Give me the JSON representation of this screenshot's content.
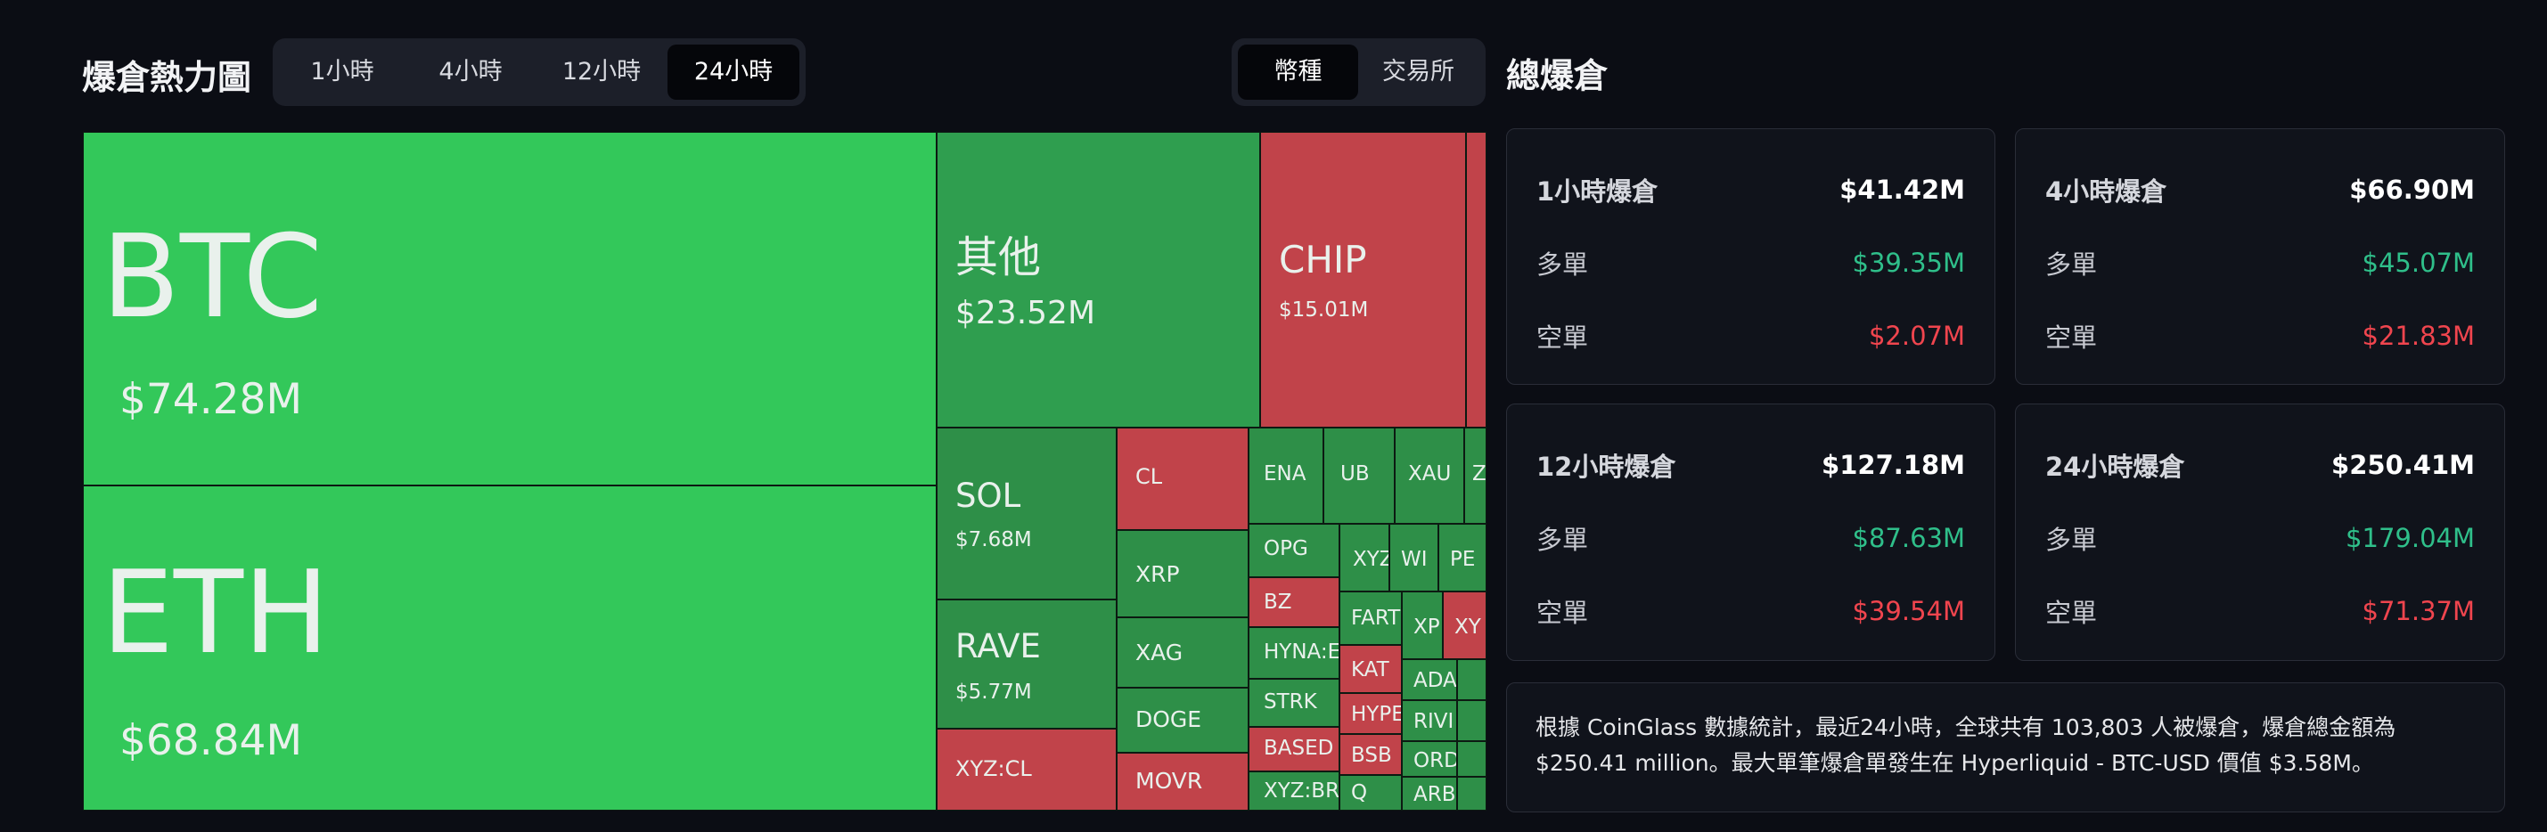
{
  "header": {
    "title": "爆倉熱力圖",
    "time_tabs": [
      "1小時",
      "4小時",
      "12小時",
      "24小時"
    ],
    "active_time_tab": "24小時",
    "group_tabs": [
      "幣種",
      "交易所"
    ],
    "active_group_tab": "幣種"
  },
  "treemap": {
    "colors": {
      "long_dominant": "#33c85a",
      "short_dominant": "#c1434a"
    },
    "tiles": {
      "btc": {
        "symbol": "BTC",
        "value": "$74.28M"
      },
      "eth": {
        "symbol": "ETH",
        "value": "$68.84M"
      },
      "other": {
        "symbol": "其他",
        "value": "$23.52M"
      },
      "chip": {
        "symbol": "CHIP",
        "value": "$15.01M"
      },
      "sol": {
        "symbol": "SOL",
        "value": "$7.68M"
      },
      "rave": {
        "symbol": "RAVE",
        "value": "$5.77M"
      },
      "cl": "CL",
      "xrp": "XRP",
      "xag": "XAG",
      "doge": "DOGE",
      "movr": "MOVR",
      "xyzcl": "XYZ:CL",
      "ena": "ENA",
      "ub": "UB",
      "xau": "XAU",
      "z": "Z",
      "opg": "OPG",
      "xyz": "XYZ",
      "wi": "WI",
      "pe": "PE",
      "bz": "BZ",
      "fart": "FART",
      "xp": "XP",
      "xy": "XY",
      "hyna": "HYNA:E",
      "kat": "KAT",
      "ada": "ADA",
      "strk": "STRK",
      "hype": "HYPE",
      "rivi": "RIVI",
      "based": "BASED",
      "bsb": "BSB",
      "ord": "ORD",
      "xyzbr": "XYZ:BR",
      "q": "Q",
      "arb": "ARB"
    }
  },
  "summary_panel": {
    "title": "總爆倉",
    "long_label": "多單",
    "short_label": "空單",
    "cards": [
      {
        "title": "1小時爆倉",
        "total": "$41.42M",
        "long": "$39.35M",
        "short": "$2.07M"
      },
      {
        "title": "4小時爆倉",
        "total": "$66.90M",
        "long": "$45.07M",
        "short": "$21.83M"
      },
      {
        "title": "12小時爆倉",
        "total": "$127.18M",
        "long": "$87.63M",
        "short": "$39.54M"
      },
      {
        "title": "24小時爆倉",
        "total": "$250.41M",
        "long": "$179.04M",
        "short": "$71.37M"
      }
    ],
    "description": "根據 CoinGlass 數據統計，最近24小時，全球共有 103,803 人被爆倉，爆倉總金額為 $250.41 million。最大單筆爆倉單發生在 Hyperliquid - BTC-USD 價值 $3.58M。"
  }
}
